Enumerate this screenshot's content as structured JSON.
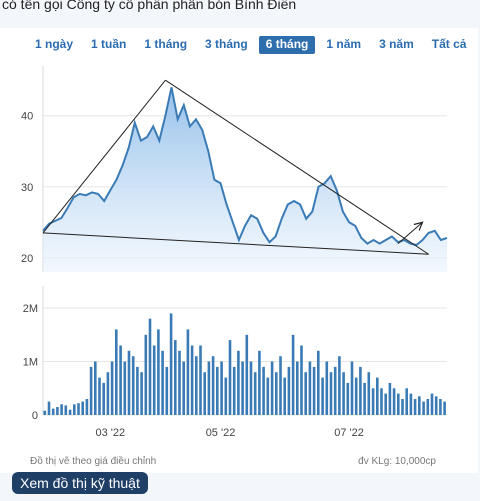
{
  "caption": "có tên gọi Công ty cổ phần phân bón Bình Điền",
  "range_buttons": [
    "1 ngày",
    "1 tuần",
    "1 tháng",
    "3 tháng",
    "6 tháng",
    "1 năm",
    "3 năm",
    "Tất cả"
  ],
  "active_range": "6 tháng",
  "footer_left": "Đồ thị vẽ theo giá điều chỉnh",
  "footer_right": "đv KLg: 10,000cp",
  "cta_label": "Xem đồ thị kỹ thuật",
  "colors": {
    "price_line": "#3a7bb6",
    "volume_bar": "#3a7bb6",
    "fill_top": "#9cc4ee",
    "cta": "#1f3f66"
  },
  "chart_data": [
    {
      "type": "area",
      "title": "",
      "ylim": [
        18,
        47
      ],
      "yticks": [
        20,
        30,
        40
      ],
      "x_ticks": [
        "03 '22",
        "05 '22",
        "07 '22"
      ],
      "x_tick_index": [
        11,
        29,
        50
      ],
      "values": [
        23.8,
        24.8,
        25.2,
        25.6,
        27.0,
        28.5,
        29.0,
        28.8,
        29.2,
        29.0,
        28.0,
        29.5,
        31.0,
        33.0,
        35.5,
        39.0,
        36.5,
        37.0,
        38.5,
        36.5,
        40.0,
        44.0,
        39.5,
        41.5,
        38.5,
        39.5,
        38.0,
        35.0,
        31.0,
        30.5,
        27.5,
        25.0,
        22.5,
        24.5,
        26.0,
        25.5,
        23.5,
        22.2,
        23.0,
        25.5,
        27.5,
        28.0,
        27.5,
        25.5,
        26.5,
        30.0,
        30.5,
        31.5,
        29.5,
        26.5,
        25.0,
        24.5,
        22.8,
        22.0,
        22.5,
        22.0,
        22.5,
        23.0,
        22.2,
        22.5,
        22.0,
        21.8,
        22.5,
        23.5,
        23.8,
        22.5,
        22.8
      ],
      "trendlines": [
        {
          "from": [
            0,
            23.5
          ],
          "to": [
            20,
            45.0
          ]
        },
        {
          "from": [
            20,
            45.0
          ],
          "to": [
            63,
            20.5
          ]
        },
        {
          "from": [
            0,
            23.5
          ],
          "to": [
            63,
            20.5
          ]
        },
        {
          "from": [
            58,
            22.0
          ],
          "to": [
            62,
            25.0
          ],
          "arrow": true
        }
      ]
    },
    {
      "type": "bar",
      "ylim": [
        0,
        2.3
      ],
      "yticks": [
        0,
        1,
        2
      ],
      "ytick_labels": [
        "0",
        "1M",
        "2M"
      ],
      "values": [
        0.08,
        0.25,
        0.12,
        0.15,
        0.2,
        0.18,
        0.1,
        0.2,
        0.22,
        0.25,
        0.3,
        0.9,
        1.0,
        0.7,
        0.6,
        0.8,
        1.0,
        1.6,
        1.3,
        1.0,
        1.2,
        1.1,
        0.9,
        0.8,
        1.5,
        1.8,
        1.3,
        1.6,
        1.2,
        0.9,
        1.9,
        1.4,
        1.2,
        1.0,
        1.6,
        1.3,
        1.1,
        1.3,
        0.8,
        1.0,
        1.1,
        0.9,
        1.0,
        0.7,
        1.4,
        0.9,
        1.2,
        1.0,
        1.5,
        1.0,
        0.8,
        1.2,
        0.9,
        0.7,
        1.0,
        0.8,
        1.1,
        0.7,
        0.9,
        1.5,
        1.0,
        1.3,
        0.8,
        1.0,
        0.9,
        1.2,
        0.7,
        1.0,
        0.8,
        0.9,
        1.1,
        0.8,
        0.6,
        1.0,
        0.7,
        0.9,
        0.6,
        0.8,
        0.5,
        0.7,
        0.5,
        0.4,
        0.6,
        0.5,
        0.4,
        0.3,
        0.5,
        0.4,
        0.3,
        0.35,
        0.25,
        0.3,
        0.4,
        0.35,
        0.3,
        0.25
      ]
    }
  ]
}
